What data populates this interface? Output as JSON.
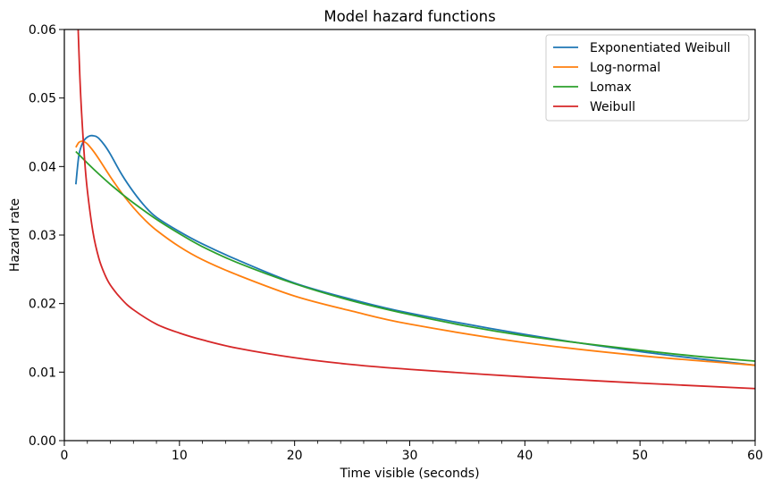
{
  "chart_data": {
    "type": "line",
    "title": "Model hazard functions",
    "xlabel": "Time visible (seconds)",
    "ylabel": "Hazard rate",
    "xlim": [
      0,
      60
    ],
    "ylim": [
      0,
      0.06
    ],
    "x_major_ticks": [
      0,
      10,
      20,
      30,
      40,
      50,
      60
    ],
    "x_tick_labels": [
      "0",
      "10",
      "20",
      "30",
      "40",
      "50",
      "60"
    ],
    "x_minor_ticks": [
      2,
      4,
      6,
      8,
      12,
      14,
      16,
      18,
      22,
      24,
      26,
      28,
      32,
      34,
      36,
      38,
      42,
      44,
      46,
      48,
      52,
      54,
      56,
      58
    ],
    "y_major_ticks": [
      0,
      0.01,
      0.02,
      0.03,
      0.04,
      0.05,
      0.06
    ],
    "y_tick_labels": [
      "0.00",
      "0.01",
      "0.02",
      "0.03",
      "0.04",
      "0.05",
      "0.06"
    ],
    "grid": false,
    "legend_position": "top-right",
    "series": [
      {
        "name": "Exponentiated Weibull",
        "color": "#1f77b4",
        "x": [
          1,
          1.25,
          1.5,
          1.75,
          2,
          2.25,
          2.5,
          2.75,
          3,
          3.5,
          4,
          5,
          6,
          7,
          8,
          10,
          12,
          15,
          20,
          25,
          30,
          40,
          50,
          60
        ],
        "y": [
          0.0374,
          0.0415,
          0.0431,
          0.0439,
          0.0443,
          0.0445,
          0.0445,
          0.0444,
          0.0441,
          0.0431,
          0.0418,
          0.0388,
          0.0363,
          0.0342,
          0.0326,
          0.0305,
          0.0287,
          0.0264,
          0.023,
          0.0206,
          0.0186,
          0.0155,
          0.013,
          0.011
        ]
      },
      {
        "name": "Log-normal",
        "color": "#ff7f0e",
        "x": [
          1,
          1.25,
          1.5,
          1.75,
          2,
          2.5,
          3,
          4,
          5,
          6,
          7,
          8,
          10,
          12,
          15,
          20,
          25,
          30,
          40,
          50,
          60
        ],
        "y": [
          0.0428,
          0.0435,
          0.0437,
          0.0436,
          0.0433,
          0.0423,
          0.0411,
          0.0385,
          0.0361,
          0.034,
          0.0322,
          0.0307,
          0.0283,
          0.0264,
          0.0242,
          0.0211,
          0.0189,
          0.017,
          0.0143,
          0.0124,
          0.011
        ]
      },
      {
        "name": "Lomax",
        "color": "#2ca02c",
        "x": [
          1,
          2,
          3,
          4,
          5,
          6,
          8,
          10,
          12,
          15,
          20,
          25,
          30,
          35,
          40,
          45,
          50,
          55,
          60
        ],
        "y": [
          0.0422,
          0.0405,
          0.0389,
          0.0374,
          0.036,
          0.0347,
          0.0323,
          0.0302,
          0.0283,
          0.026,
          0.0229,
          0.0204,
          0.0184,
          0.0167,
          0.0153,
          0.0142,
          0.0132,
          0.0123,
          0.0116
        ]
      },
      {
        "name": "Weibull",
        "color": "#d62728",
        "x": [
          1.2,
          1.35,
          1.5,
          1.75,
          2,
          2.5,
          3,
          3.5,
          4,
          5,
          6,
          8,
          10,
          12,
          15,
          20,
          25,
          30,
          40,
          50,
          60
        ],
        "y": [
          0.06,
          0.053,
          0.0478,
          0.0412,
          0.0365,
          0.0303,
          0.0266,
          0.0243,
          0.0227,
          0.0206,
          0.0191,
          0.017,
          0.0157,
          0.0147,
          0.0135,
          0.0121,
          0.0111,
          0.0104,
          0.0093,
          0.0084,
          0.0076
        ]
      }
    ]
  }
}
